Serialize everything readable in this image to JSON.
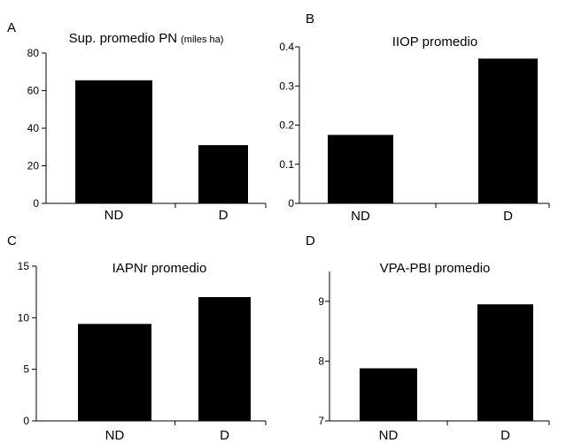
{
  "chart_data": [
    {
      "type": "bar",
      "panel": "A",
      "title": "Sup. promedio PN",
      "title_suffix": "(miles ha)",
      "categories": [
        "ND",
        "D"
      ],
      "values": [
        65.5,
        31
      ],
      "ylim": [
        0,
        80
      ],
      "yticks": [
        "0",
        "20",
        "40",
        "60",
        "80"
      ],
      "bar_color": "#000000"
    },
    {
      "type": "bar",
      "panel": "B",
      "title": "IIOP promedio",
      "categories": [
        "ND",
        "D"
      ],
      "values": [
        0.175,
        0.37
      ],
      "ylim": [
        0,
        0.4
      ],
      "yticks": [
        "0",
        "0.1",
        "0.2",
        "0.3",
        "0.4"
      ],
      "bar_color": "#000000"
    },
    {
      "type": "bar",
      "panel": "C",
      "title": "IAPNr promedio",
      "categories": [
        "ND",
        "D"
      ],
      "values": [
        9.4,
        12
      ],
      "ylim": [
        0,
        15
      ],
      "yticks": [
        "0",
        "5",
        "10",
        "15"
      ],
      "bar_color": "#000000"
    },
    {
      "type": "bar",
      "panel": "D",
      "title": "VPA-PBI promedio",
      "categories": [
        "ND",
        "D"
      ],
      "values": [
        7.88,
        8.95
      ],
      "ylim": [
        7,
        9.5
      ],
      "yticks": [
        "7",
        "8",
        "9"
      ],
      "bar_color": "#000000"
    }
  ]
}
